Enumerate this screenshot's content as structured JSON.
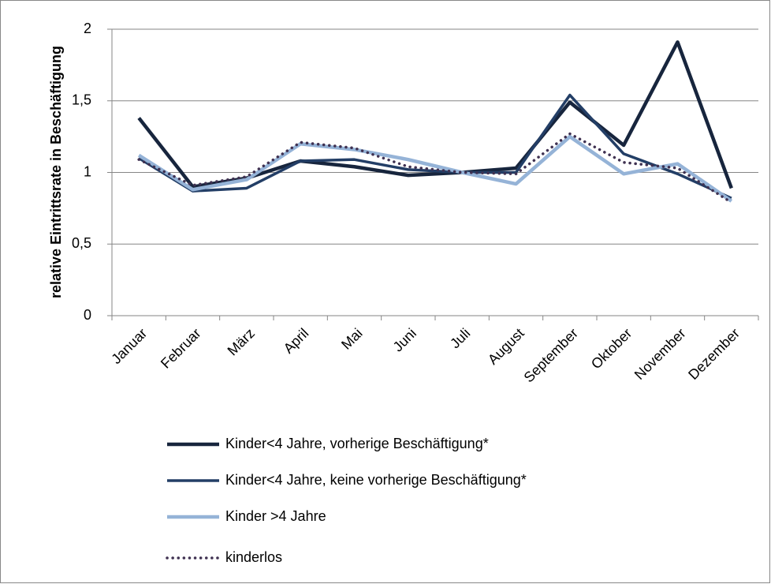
{
  "chart_data": {
    "type": "line",
    "y_label": "relative Eintrittsrate in Beschäftigung",
    "categories": [
      "Januar",
      "Februar",
      "März",
      "April",
      "Mai",
      "Juni",
      "Juli",
      "August",
      "September",
      "Oktober",
      "November",
      "Dezember"
    ],
    "ylim": [
      0,
      2
    ],
    "yticks": [
      0,
      {
        "value": 0.5,
        "label": "0,5"
      },
      1,
      {
        "value": 1.5,
        "label": "1,5"
      },
      2
    ],
    "grid": true,
    "legend": "bottom",
    "series": [
      {
        "name": "Kinder<4 Jahre, vorherige Beschäftigung*",
        "color": "#17253d",
        "style": "solid",
        "values": [
          1.38,
          0.9,
          0.96,
          1.08,
          1.04,
          0.98,
          1.0,
          1.03,
          1.49,
          1.19,
          1.91,
          0.89
        ]
      },
      {
        "name": "Kinder<4 Jahre, keine vorherige Beschäftigung*",
        "color": "#233e66",
        "style": "solid",
        "values": [
          1.1,
          0.87,
          0.89,
          1.08,
          1.09,
          1.02,
          1.0,
          1.0,
          1.54,
          1.13,
          0.99,
          0.82
        ]
      },
      {
        "name": "Kinder >4 Jahre",
        "color": "#95b3d7",
        "style": "solid",
        "values": [
          1.12,
          0.88,
          0.95,
          1.2,
          1.16,
          1.09,
          1.0,
          0.92,
          1.25,
          0.99,
          1.06,
          0.8
        ]
      },
      {
        "name": "kinderlos",
        "color": "#3f3151",
        "style": "dotted",
        "values": [
          1.09,
          0.91,
          0.97,
          1.21,
          1.17,
          1.04,
          1.0,
          0.99,
          1.27,
          1.07,
          1.03,
          0.79
        ]
      }
    ]
  }
}
